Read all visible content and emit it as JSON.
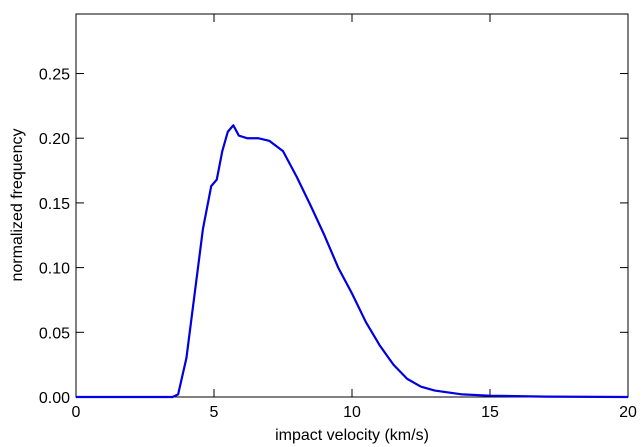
{
  "chart_data": {
    "type": "line",
    "x_label": "impact velocity  (km/s)",
    "y_label": "normalized frequency",
    "xlim": [
      0,
      20
    ],
    "xticks": [
      0,
      5,
      10,
      15,
      20
    ],
    "ylim": [
      0,
      0.296
    ],
    "yticks": [
      {
        "value": 0,
        "label": "0.00"
      },
      {
        "value": 0.05,
        "label": "0.05"
      },
      {
        "value": 0.1,
        "label": "0.10"
      },
      {
        "value": 0.15,
        "label": "0.15"
      },
      {
        "value": 0.2,
        "label": "0.20"
      },
      {
        "value": 0.25,
        "label": "0.25"
      }
    ],
    "series": [
      {
        "color": "#0000e0",
        "x": [
          0,
          3.5,
          3.7,
          4.0,
          4.3,
          4.6,
          4.9,
          5.1,
          5.3,
          5.5,
          5.7,
          5.9,
          6.2,
          6.6,
          7.0,
          7.5,
          8.0,
          8.5,
          9.0,
          9.5,
          10.0,
          10.5,
          11.0,
          11.5,
          12.0,
          12.5,
          13,
          14,
          15,
          17,
          20
        ],
        "values": [
          0,
          0,
          0.002,
          0.03,
          0.08,
          0.13,
          0.163,
          0.168,
          0.19,
          0.205,
          0.21,
          0.202,
          0.2,
          0.2,
          0.198,
          0.19,
          0.17,
          0.148,
          0.125,
          0.1,
          0.08,
          0.058,
          0.04,
          0.025,
          0.014,
          0.008,
          0.005,
          0.002,
          0.001,
          0.0003,
          0
        ]
      }
    ]
  }
}
